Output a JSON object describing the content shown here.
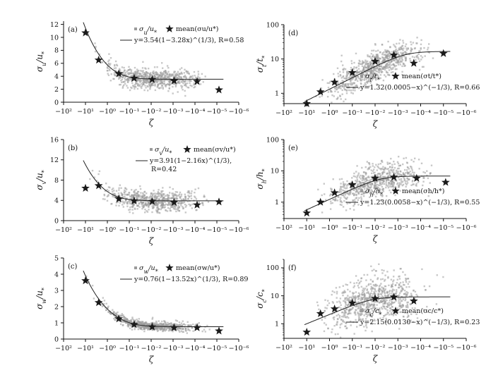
{
  "chart_data": [
    {
      "id": "a",
      "type": "scatter",
      "panel_label": "(a)",
      "ylabel": "σu/u*",
      "xlabel": "ζ",
      "yscale": "linear",
      "ylim": [
        0,
        12.5
      ],
      "yticks": [
        0,
        2,
        4,
        6,
        8,
        10,
        12
      ],
      "xlim": [
        -100,
        -1e-06
      ],
      "xticks": [
        "−10²",
        "−10¹",
        "−10⁰",
        "−10⁻¹",
        "−10⁻²",
        "−10⁻³",
        "−10⁻⁴",
        "−10⁻⁵",
        "−10⁻⁶"
      ],
      "legend": {
        "scatter_label": "σu/u*",
        "mean_label": "mean(σu/u*)",
        "fit_label": "y=3.54(1−3.28x)^(1/3), R=0.58"
      },
      "fit": {
        "a": 3.54,
        "b": 1,
        "c": -3.28,
        "power": 0.333,
        "R": 0.58
      },
      "mean_points": [
        {
          "x": -10,
          "y": 10.7
        },
        {
          "x": -2.5,
          "y": 6.5
        },
        {
          "x": -0.3,
          "y": 4.4
        },
        {
          "x": -0.06,
          "y": 3.7
        },
        {
          "x": -0.009,
          "y": 3.5
        },
        {
          "x": -0.0009,
          "y": 3.3
        },
        {
          "x": -8e-05,
          "y": 3.2
        },
        {
          "x": -8e-06,
          "y": 1.9
        }
      ],
      "cloud": {
        "y_center": 3.9,
        "y_spread": 1.1,
        "n": 700
      }
    },
    {
      "id": "b",
      "type": "scatter",
      "panel_label": "(b)",
      "ylabel": "σv/u*",
      "xlabel": "ζ",
      "yscale": "linear",
      "ylim": [
        0,
        16
      ],
      "yticks": [
        0,
        4,
        8,
        12,
        16
      ],
      "xlim": [
        -100,
        -1e-06
      ],
      "xticks": [
        "−10²",
        "−10¹",
        "−10⁰",
        "−10⁻¹",
        "−10⁻²",
        "−10⁻³",
        "−10⁻⁴",
        "−10⁻⁵",
        "−10⁻⁶"
      ],
      "legend": {
        "scatter_label": "σv/u*",
        "mean_label": "mean(σv/u*)",
        "fit_label": "y=3.91(1−2.16x)^(1/3),",
        "fit_label2": "R=0.42"
      },
      "fit": {
        "a": 3.91,
        "b": 1,
        "c": -2.16,
        "power": 0.333,
        "R": 0.42
      },
      "mean_points": [
        {
          "x": -10,
          "y": 6.4
        },
        {
          "x": -2.5,
          "y": 6.9
        },
        {
          "x": -0.3,
          "y": 4.3
        },
        {
          "x": -0.06,
          "y": 3.9
        },
        {
          "x": -0.009,
          "y": 3.8
        },
        {
          "x": -0.0009,
          "y": 3.6
        },
        {
          "x": -8e-05,
          "y": 3.1
        },
        {
          "x": -8e-06,
          "y": 3.7
        }
      ],
      "cloud": {
        "y_center": 4.3,
        "y_spread": 1.4,
        "n": 650
      }
    },
    {
      "id": "c",
      "type": "scatter",
      "panel_label": "(c)",
      "ylabel": "σw/u*",
      "xlabel": "ζ",
      "yscale": "linear",
      "ylim": [
        0,
        5
      ],
      "yticks": [
        0,
        1,
        2,
        3,
        4,
        5
      ],
      "xlim": [
        -100,
        -1e-06
      ],
      "xticks": [
        "−10²",
        "−10¹",
        "−10⁰",
        "−10⁻¹",
        "−10⁻²",
        "−10⁻³",
        "−10⁻⁴",
        "−10⁻⁵",
        "−10⁻⁶"
      ],
      "legend": {
        "scatter_label": "σw/u*",
        "mean_label": "mean(σw/u*)",
        "fit_label": "y=0.76(1−13.52x)^(1/3), R=0.89"
      },
      "fit": {
        "a": 0.76,
        "b": 1,
        "c": -13.52,
        "power": 0.333,
        "R": 0.89
      },
      "mean_points": [
        {
          "x": -10,
          "y": 3.6
        },
        {
          "x": -2.5,
          "y": 2.25
        },
        {
          "x": -0.3,
          "y": 1.25
        },
        {
          "x": -0.06,
          "y": 0.9
        },
        {
          "x": -0.009,
          "y": 0.75
        },
        {
          "x": -0.0009,
          "y": 0.7
        },
        {
          "x": -8e-05,
          "y": 0.7
        },
        {
          "x": -8e-06,
          "y": 0.5
        }
      ],
      "cloud": {
        "y_center": 0.85,
        "y_spread": 0.2,
        "n": 650
      }
    },
    {
      "id": "d",
      "type": "scatter",
      "panel_label": "(d)",
      "ylabel": "σt/t*",
      "xlabel": "ζ",
      "yscale": "log",
      "ylim": [
        0.5,
        100
      ],
      "yticks": [
        1,
        10,
        100
      ],
      "xlim": [
        -100,
        -1e-06
      ],
      "xticks": [
        "−10²",
        "−10¹",
        "−10⁰",
        "−10⁻¹",
        "−10⁻²",
        "−10⁻³",
        "−10⁻⁴",
        "−10⁻⁵",
        "−10⁻⁶"
      ],
      "legend": {
        "scatter_label": "σt/t*",
        "mean_label": "mean(σt/t*)",
        "fit_label": "y=1.32(0.0005−x)^(−1/3), R=0.66"
      },
      "fit": {
        "a": 1.32,
        "b": 0.0005,
        "c": -1,
        "power": -0.333,
        "R": 0.66
      },
      "mean_points": [
        {
          "x": -10,
          "y": 0.5
        },
        {
          "x": -2.5,
          "y": 1.1
        },
        {
          "x": -0.6,
          "y": 2.1
        },
        {
          "x": -0.1,
          "y": 4.0
        },
        {
          "x": -0.01,
          "y": 8.5
        },
        {
          "x": -0.0015,
          "y": 13
        },
        {
          "x": -0.0002,
          "y": 7.5
        },
        {
          "x": -1e-05,
          "y": 14.5
        }
      ],
      "cloud": {
        "y_center_fit": true,
        "y_spread": 0.5,
        "n": 800
      }
    },
    {
      "id": "e",
      "type": "scatter",
      "panel_label": "(e)",
      "ylabel": "σh/h*",
      "xlabel": "ζ",
      "yscale": "log",
      "ylim": [
        0.3,
        100
      ],
      "yticks": [
        1,
        10,
        100
      ],
      "xlim": [
        -100,
        -1e-06
      ],
      "xticks": [
        "−10²",
        "−10¹",
        "−10⁰",
        "−10⁻¹",
        "−10⁻²",
        "−10⁻³",
        "−10⁻⁴",
        "−10⁻⁵",
        "−10⁻⁶"
      ],
      "legend": {
        "scatter_label": "σh/h*",
        "mean_label": "mean(σh/h*)",
        "fit_label": "y=1.23(0.0058−x)^(−1/3), R=0.55"
      },
      "fit": {
        "a": 1.23,
        "b": 0.0058,
        "c": -1,
        "power": -0.333,
        "R": 0.55
      },
      "mean_points": [
        {
          "x": -10,
          "y": 0.45
        },
        {
          "x": -2.5,
          "y": 1.0
        },
        {
          "x": -0.6,
          "y": 2.0
        },
        {
          "x": -0.1,
          "y": 3.6
        },
        {
          "x": -0.01,
          "y": 5.8
        },
        {
          "x": -0.0015,
          "y": 6.3
        },
        {
          "x": -0.00015,
          "y": 5.8
        },
        {
          "x": -8e-06,
          "y": 4.3
        }
      ],
      "cloud": {
        "y_center_fit": true,
        "y_spread": 0.55,
        "n": 700
      }
    },
    {
      "id": "f",
      "type": "scatter",
      "panel_label": "(f)",
      "ylabel": "σc/c*",
      "xlabel": "ζ",
      "yscale": "log",
      "ylim": [
        0.3,
        200
      ],
      "yticks": [
        1,
        10,
        100
      ],
      "xlim": [
        -100,
        -1e-06
      ],
      "xticks": [
        "−10²",
        "−10¹",
        "−10⁰",
        "−10⁻¹",
        "−10⁻²",
        "−10⁻³",
        "−10⁻⁴",
        "−10⁻⁵",
        "−10⁻⁶"
      ],
      "legend": {
        "scatter_label": "σc/c*",
        "mean_label": "mean(σc/c*)",
        "fit_label": "y=2.15(0.0130−x)^(−1/3), R=0.23"
      },
      "fit": {
        "a": 2.15,
        "b": 0.013,
        "c": -1,
        "power": -0.333,
        "R": 0.23
      },
      "mean_points": [
        {
          "x": -10,
          "y": 0.5
        },
        {
          "x": -2.5,
          "y": 2.3
        },
        {
          "x": -0.6,
          "y": 3.4
        },
        {
          "x": -0.1,
          "y": 5.5
        },
        {
          "x": -0.01,
          "y": 8.0
        },
        {
          "x": -0.0015,
          "y": 9.0
        },
        {
          "x": -0.0002,
          "y": 6.5
        }
      ],
      "cloud": {
        "y_center_fit": true,
        "y_spread": 0.9,
        "n": 800
      }
    }
  ],
  "colors": {
    "points": "#9a9a9a",
    "mean": "#1a1a1a",
    "fit": "#222222",
    "axis": "#111111"
  }
}
